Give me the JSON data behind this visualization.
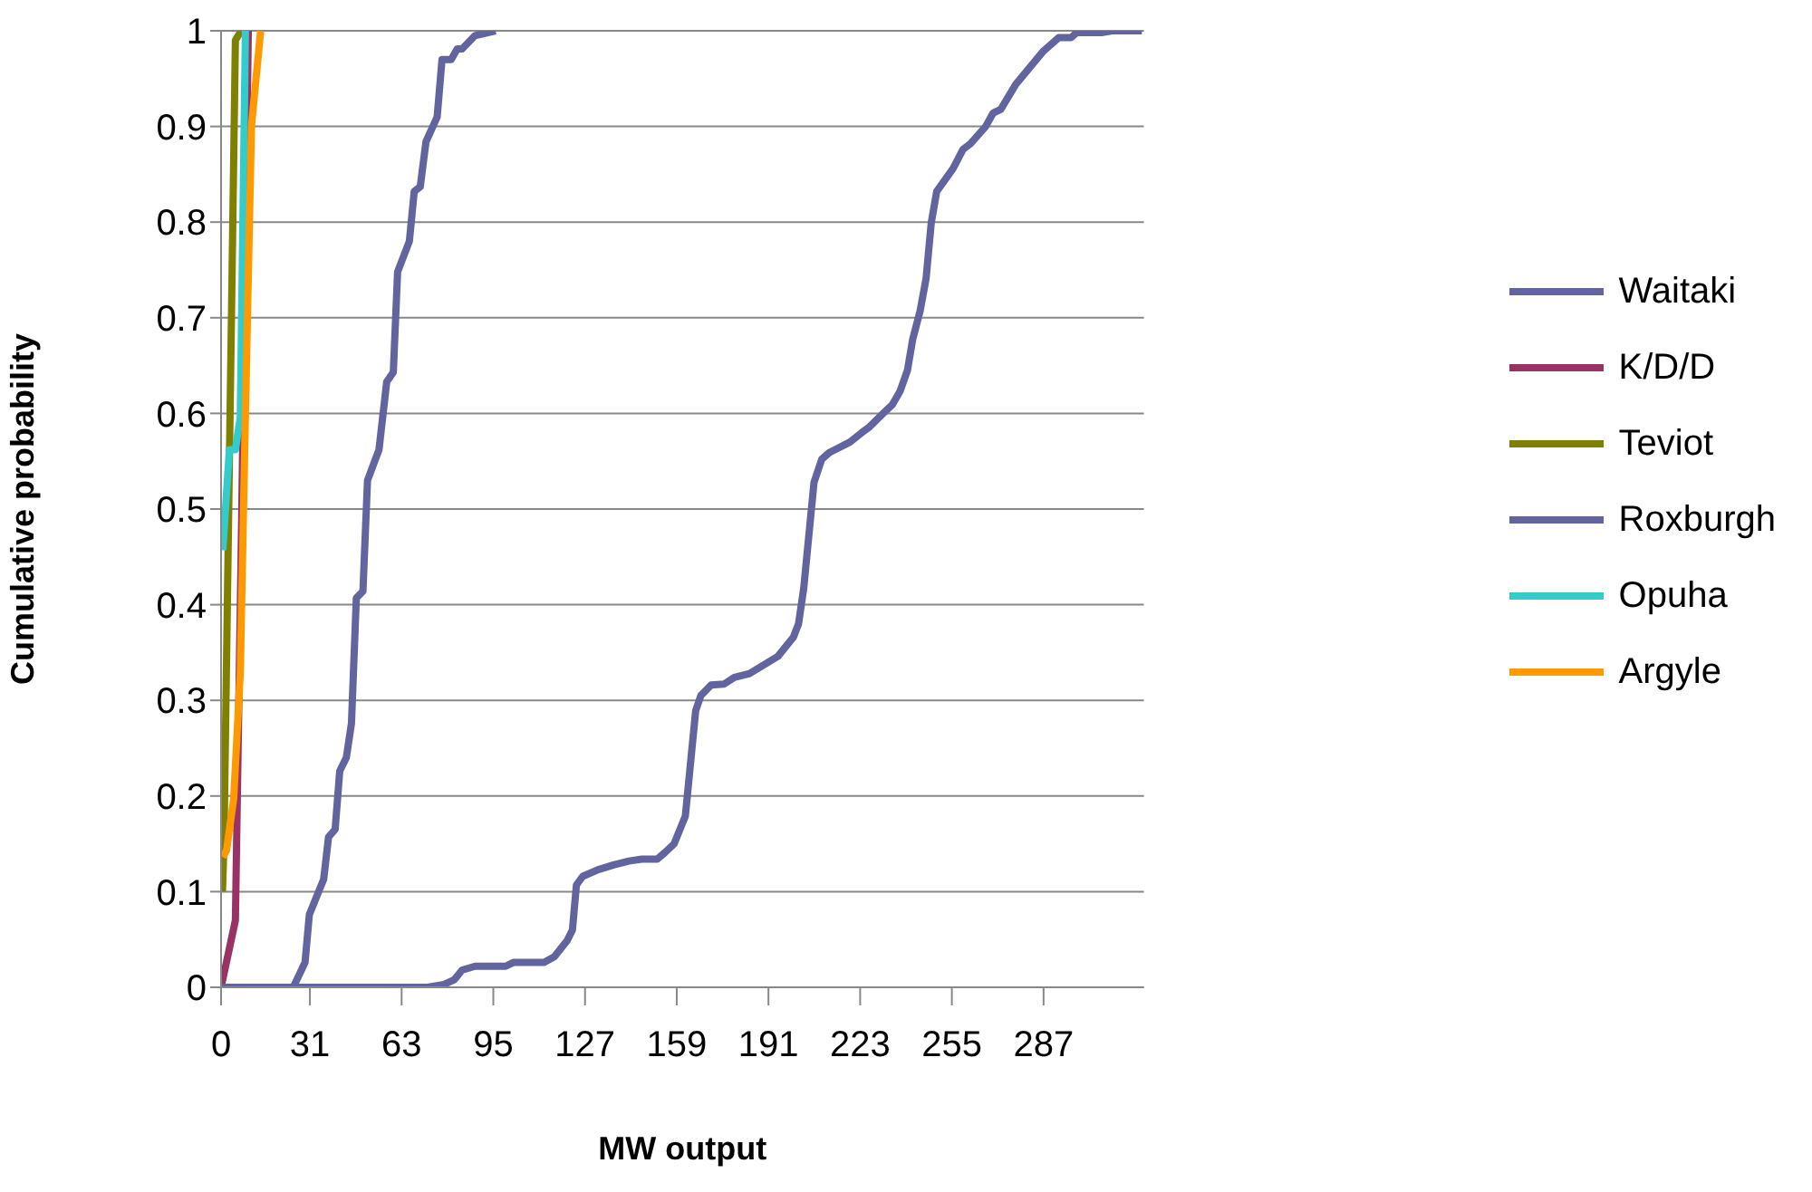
{
  "chart_data": {
    "type": "line",
    "xlabel": "MW output",
    "ylabel": "Cumulative probability",
    "xlim": [
      0,
      322
    ],
    "xticks": [
      0,
      31,
      63,
      95,
      127,
      159,
      191,
      223,
      255,
      287
    ],
    "ylim": [
      0,
      1
    ],
    "yticks": [
      0,
      0.1,
      0.2,
      0.3,
      0.4,
      0.5,
      0.6,
      0.7,
      0.8,
      0.9,
      1
    ],
    "grid": "y",
    "legend": "right",
    "marker": "none",
    "line_style": "solid",
    "series": [
      {
        "name": "Waitaki",
        "color": "#62649f",
        "x": [
          0,
          25.2,
          29.3,
          30.8,
          35.8,
          37.5,
          39.8,
          41.4,
          43.7,
          45.5,
          47.2,
          49.5,
          51.1,
          55.1,
          57.8,
          60.1,
          61.6,
          65.7,
          67.4,
          69.5,
          71.5,
          75.4,
          77.1,
          80.3,
          82.4,
          84.1,
          88.6,
          95.8
        ],
        "values": [
          0,
          0,
          0.026,
          0.076,
          0.113,
          0.157,
          0.165,
          0.226,
          0.24,
          0.276,
          0.407,
          0.414,
          0.53,
          0.562,
          0.633,
          0.643,
          0.748,
          0.78,
          0.832,
          0.837,
          0.884,
          0.91,
          0.97,
          0.97,
          0.981,
          0.981,
          0.995,
          1
        ]
      },
      {
        "name": "K/D/D",
        "color": "#993366",
        "x": [
          0,
          5,
          7.2,
          9.5
        ],
        "values": [
          0,
          0.07,
          0.49,
          1
        ]
      },
      {
        "name": "Teviot",
        "color": "#808000",
        "x": [
          0.5,
          1,
          5,
          7
        ],
        "values": [
          0.1,
          0.15,
          0.99,
          1
        ]
      },
      {
        "name": "Roxburgh",
        "color": "#62649f",
        "x": [
          0,
          72,
          77.8,
          81.4,
          84.1,
          88.6,
          99.3,
          102,
          112.7,
          116.3,
          120.8,
          122.6,
          124,
          126.2,
          131.6,
          137,
          142.3,
          146.8,
          152.2,
          154.9,
          158.1,
          162,
          163.8,
          165.6,
          167.4,
          171,
          175.5,
          179.1,
          184.4,
          194.3,
          199.7,
          201.5,
          203.3,
          206.9,
          209.6,
          212.2,
          219.4,
          223.6,
          226.3,
          230.7,
          234.2,
          236.9,
          239.5,
          241.3,
          243.9,
          246,
          247.8,
          249.7,
          255.4,
          258.9,
          261.5,
          266.8,
          269.4,
          272.1,
          277.3,
          287,
          292.3,
          296.7,
          298.5,
          307.2,
          310.8,
          321.3
        ],
        "values": [
          0,
          0,
          0.003,
          0.008,
          0.018,
          0.022,
          0.022,
          0.026,
          0.026,
          0.032,
          0.049,
          0.06,
          0.107,
          0.116,
          0.123,
          0.128,
          0.132,
          0.134,
          0.134,
          0.141,
          0.15,
          0.179,
          0.234,
          0.289,
          0.305,
          0.316,
          0.317,
          0.324,
          0.328,
          0.346,
          0.366,
          0.38,
          0.417,
          0.528,
          0.552,
          0.559,
          0.57,
          0.58,
          0.586,
          0.599,
          0.609,
          0.623,
          0.645,
          0.677,
          0.707,
          0.741,
          0.799,
          0.832,
          0.856,
          0.876,
          0.882,
          0.9,
          0.914,
          0.918,
          0.944,
          0.979,
          0.993,
          0.993,
          0.998,
          0.998,
          1,
          1
        ]
      },
      {
        "name": "Opuha",
        "color": "#33cccc",
        "x": [
          0.6,
          2.9,
          5,
          6.7,
          8.5
        ],
        "values": [
          0.457,
          0.562,
          0.562,
          0.596,
          1
        ]
      },
      {
        "name": "Argyle",
        "color": "#ff9900",
        "x": [
          0.6,
          1.9,
          4.4,
          6.7,
          8.5,
          10.6,
          13.8
        ],
        "values": [
          0.136,
          0.143,
          0.197,
          0.329,
          0.6,
          0.9,
          1
        ]
      }
    ]
  }
}
